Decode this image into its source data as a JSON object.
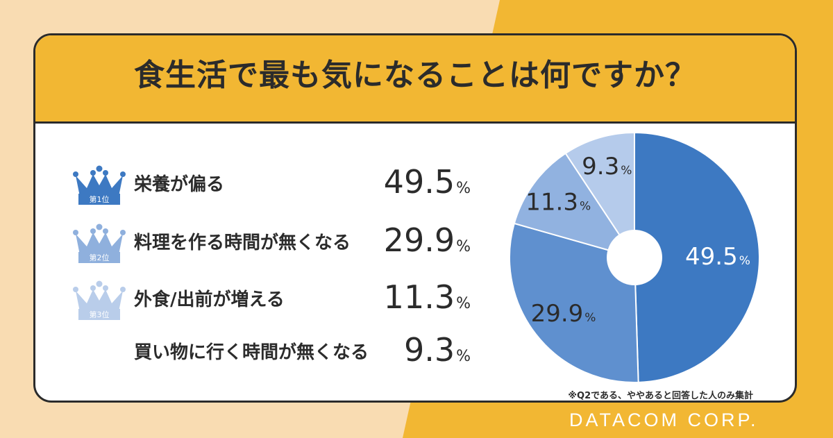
{
  "title": "食生活で最も気になることは何ですか？",
  "colors": {
    "background_light": "#f9dcb2",
    "background_accent": "#f2b733",
    "title_band": "#f2b733",
    "rank1": "#3d79c2",
    "rank2": "#5f90cf",
    "rank3": "#91b2e0",
    "rank4": "#b5cbeb"
  },
  "ranks": [
    {
      "badge": "第1位",
      "label": "栄養が偏る",
      "value": "49.5",
      "unit": "%",
      "crown_color": "#3d79c2"
    },
    {
      "badge": "第2位",
      "label": "料理を作る時間が無くなる",
      "value": "29.9",
      "unit": "%",
      "crown_color": "#8fb0dd"
    },
    {
      "badge": "第3位",
      "label": "外食/出前が増える",
      "value": "11.3",
      "unit": "%",
      "crown_color": "#b9cdea"
    },
    {
      "badge": "",
      "label": "買い物に行く時間が無くなる",
      "value": "9.3",
      "unit": "%",
      "crown_color": ""
    }
  ],
  "chart_data": {
    "type": "pie",
    "style": "donut",
    "categories": [
      "栄養が偏る",
      "料理を作る時間が無くなる",
      "外食/出前が増える",
      "買い物に行く時間が無くなる"
    ],
    "values": [
      49.5,
      29.9,
      11.3,
      9.3
    ],
    "labels": [
      "49.5%",
      "29.9%",
      "11.3%",
      "9.3%"
    ],
    "colors": [
      "#3d79c2",
      "#5f90cf",
      "#91b2e0",
      "#b5cbeb"
    ],
    "start": "12 o'clock",
    "direction": "clockwise"
  },
  "footnote": "※Q2である、ややあると回答した人のみ集計",
  "brand": "DATACOM CORP."
}
